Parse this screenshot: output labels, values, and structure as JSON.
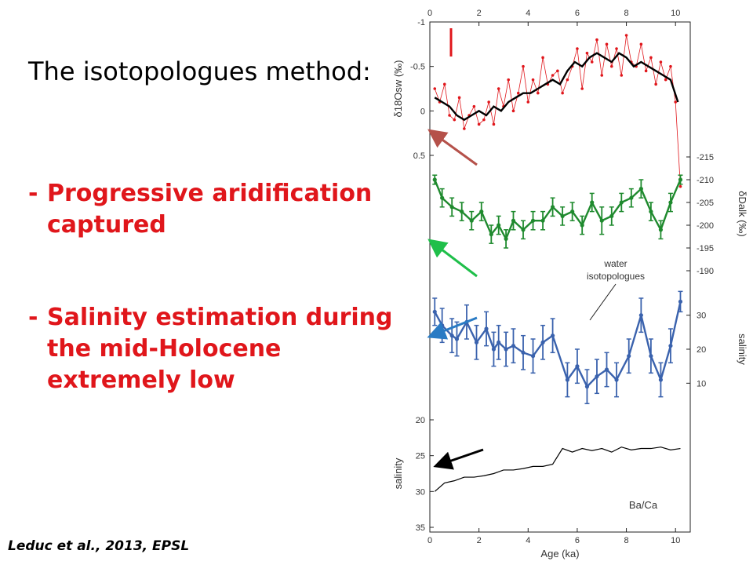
{
  "slide": {
    "title": "The isotopologues method:",
    "bullets": [
      {
        "dash": "-",
        "lines": [
          "Progressive aridification",
          "captured"
        ]
      },
      {
        "dash": "-",
        "lines": [
          "Salinity estimation during",
          "the mid-Holocene",
          "extremely low"
        ]
      }
    ],
    "citation": "Leduc et al., 2013, EPSL"
  },
  "colors": {
    "bullet": "#e0161b",
    "panel1_raw": "#e0161b",
    "panel1_smooth": "#000000",
    "panel2": "#1f8a2e",
    "panel3": "#3a62ad",
    "panel4": "#000000"
  },
  "chart_data": {
    "type": "line",
    "x_axis": {
      "label": "Age (ka)",
      "range": [
        0,
        10.6
      ],
      "ticks": [
        "0",
        "2",
        "4",
        "6",
        "8",
        "10"
      ]
    },
    "panels": [
      {
        "name": "d18O",
        "ylabel": "δ18Osw (‰)",
        "ylim": [
          -1,
          0.5
        ],
        "inverted": true,
        "ticks": [
          "-1",
          "-0.5",
          "0",
          "0.5"
        ],
        "series": [
          {
            "style": "raw",
            "x": [
              0.2,
              0.4,
              0.6,
              0.8,
              1.0,
              1.2,
              1.4,
              1.6,
              1.8,
              2.0,
              2.2,
              2.4,
              2.6,
              2.8,
              3.0,
              3.2,
              3.4,
              3.6,
              3.8,
              4.0,
              4.2,
              4.4,
              4.6,
              4.8,
              5.0,
              5.2,
              5.4,
              5.6,
              5.8,
              6.0,
              6.2,
              6.4,
              6.6,
              6.8,
              7.0,
              7.2,
              7.4,
              7.6,
              7.8,
              8.0,
              8.2,
              8.4,
              8.6,
              8.8,
              9.0,
              9.2,
              9.4,
              9.6,
              9.8,
              10.0,
              10.2
            ],
            "y": [
              -0.25,
              -0.1,
              -0.3,
              0.05,
              0.1,
              -0.15,
              0.2,
              0.05,
              -0.05,
              0.15,
              0.1,
              -0.1,
              0.15,
              -0.25,
              -0.05,
              -0.35,
              0.0,
              -0.2,
              -0.5,
              -0.1,
              -0.35,
              -0.2,
              -0.6,
              -0.3,
              -0.4,
              -0.45,
              -0.2,
              -0.35,
              -0.5,
              -0.7,
              -0.25,
              -0.65,
              -0.55,
              -0.8,
              -0.4,
              -0.75,
              -0.5,
              -0.7,
              -0.4,
              -0.85,
              -0.55,
              -0.5,
              -0.75,
              -0.45,
              -0.6,
              -0.3,
              -0.55,
              -0.35,
              -0.5,
              -0.1,
              0.85
            ]
          },
          {
            "style": "smooth",
            "x": [
              0.2,
              0.5,
              0.8,
              1.1,
              1.4,
              1.7,
              2.0,
              2.3,
              2.6,
              2.9,
              3.2,
              3.5,
              3.8,
              4.1,
              4.4,
              4.7,
              5.0,
              5.3,
              5.6,
              5.9,
              6.2,
              6.5,
              6.8,
              7.1,
              7.4,
              7.7,
              8.0,
              8.3,
              8.6,
              8.9,
              9.2,
              9.5,
              9.8,
              10.1
            ],
            "y": [
              -0.15,
              -0.1,
              -0.05,
              0.05,
              0.1,
              0.05,
              0.0,
              0.05,
              -0.05,
              0.0,
              -0.1,
              -0.15,
              -0.2,
              -0.2,
              -0.25,
              -0.3,
              -0.35,
              -0.3,
              -0.45,
              -0.55,
              -0.5,
              -0.6,
              -0.65,
              -0.6,
              -0.55,
              -0.65,
              -0.6,
              -0.5,
              -0.55,
              -0.5,
              -0.45,
              -0.4,
              -0.35,
              -0.1
            ]
          }
        ]
      },
      {
        "name": "dD",
        "ylabel": "δDalk (‰)",
        "ylim": [
          -215,
          -190
        ],
        "ticks": [
          "-215",
          "-210",
          "-205",
          "-200",
          "-195",
          "-190"
        ],
        "series": [
          {
            "style": "errorbar",
            "x": [
              0.2,
              0.5,
              0.9,
              1.3,
              1.7,
              2.1,
              2.5,
              2.8,
              3.1,
              3.4,
              3.8,
              4.2,
              4.6,
              5.0,
              5.4,
              5.8,
              6.2,
              6.6,
              7.0,
              7.4,
              7.8,
              8.2,
              8.6,
              9.0,
              9.4,
              9.8,
              10.2
            ],
            "y": [
              -210,
              -206,
              -204,
              -203,
              -201,
              -203,
              -198,
              -200,
              -197,
              -201,
              -199,
              -201,
              -201,
              -204,
              -202,
              -203,
              -200,
              -205,
              -201,
              -202,
              -205,
              -206,
              -208,
              -203,
              -199,
              -205,
              -210
            ],
            "err": [
              1,
              2,
              2,
              2,
              2,
              2,
              2,
              2,
              2,
              2,
              2,
              2,
              2,
              2,
              2,
              2,
              2,
              2,
              3,
              2,
              2,
              2,
              2,
              2,
              2,
              2,
              1
            ]
          }
        ]
      },
      {
        "name": "salinity-isotopologues",
        "ylabel": "salinity",
        "ylim": [
          35,
          5
        ],
        "ticks": [
          "10",
          "20",
          "30"
        ],
        "annotation": [
          "water",
          "isotopologues"
        ],
        "series": [
          {
            "style": "errorbar",
            "x": [
              0.2,
              0.5,
              0.9,
              1.1,
              1.5,
              1.9,
              2.3,
              2.6,
              2.8,
              3.1,
              3.4,
              3.8,
              4.2,
              4.6,
              5.0,
              5.6,
              6.0,
              6.4,
              6.8,
              7.2,
              7.6,
              8.1,
              8.6,
              9.0,
              9.4,
              9.8,
              10.2
            ],
            "y": [
              31,
              27,
              24,
              23,
              28,
              22,
              26,
              20,
              22,
              20,
              21,
              19,
              18,
              22,
              24,
              11,
              15,
              9,
              12,
              14,
              11,
              18,
              30,
              18,
              11,
              21,
              34
            ],
            "err": [
              4,
              5,
              5,
              5,
              5,
              5,
              5,
              5,
              5,
              5,
              5,
              5,
              5,
              5,
              5,
              5,
              5,
              5,
              5,
              5,
              5,
              5,
              5,
              5,
              5,
              5,
              3
            ]
          }
        ]
      },
      {
        "name": "salinity-BaCa",
        "ylabel": "salinity",
        "ylim": [
          20,
          35
        ],
        "ticks": [
          "20",
          "25",
          "30",
          "35"
        ],
        "annotation": [
          "Ba/Ca"
        ],
        "series": [
          {
            "style": "line",
            "x": [
              0.2,
              0.6,
              1.0,
              1.4,
              1.8,
              2.2,
              2.6,
              3.0,
              3.4,
              3.8,
              4.2,
              4.6,
              5.0,
              5.4,
              5.8,
              6.2,
              6.6,
              7.0,
              7.4,
              7.8,
              8.2,
              8.6,
              9.0,
              9.4,
              9.8,
              10.2
            ],
            "y": [
              30,
              28.8,
              28.5,
              28,
              28,
              27.8,
              27.5,
              27,
              27,
              26.8,
              26.5,
              26.5,
              26.2,
              24,
              24.5,
              24,
              24.3,
              24,
              24.5,
              23.8,
              24.2,
              24,
              24,
              23.8,
              24.2,
              24
            ]
          }
        ]
      }
    ]
  }
}
